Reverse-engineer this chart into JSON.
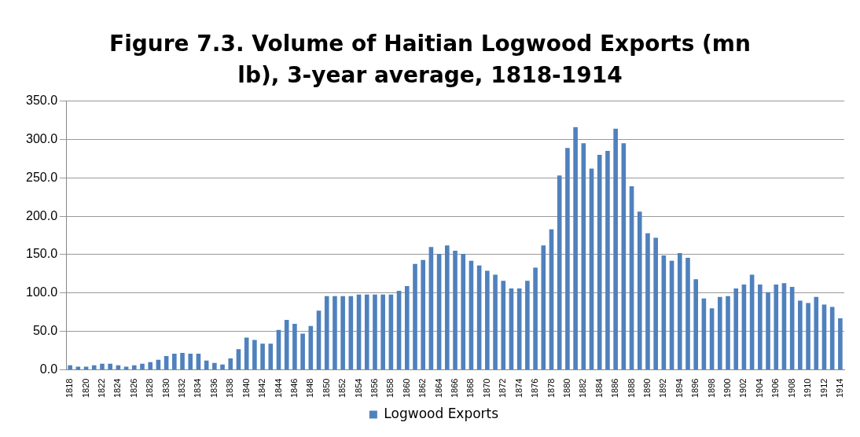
{
  "chart_data": {
    "type": "bar",
    "title": "Figure 7.3. Volume of Haitian Logwood Exports (mn lb), 3-year average, 1818-1914",
    "categories": [
      "1818",
      null,
      "1820",
      null,
      "1822",
      null,
      "1824",
      null,
      "1826",
      null,
      "1828",
      null,
      "1830",
      null,
      "1832",
      null,
      "1834",
      null,
      "1836",
      null,
      "1838",
      null,
      "1840",
      null,
      "1842",
      null,
      "1844",
      null,
      "1846",
      null,
      "1848",
      null,
      "1850",
      null,
      "1852",
      null,
      "1854",
      null,
      "1856",
      null,
      "1858",
      null,
      "1860",
      null,
      "1862",
      null,
      "1864",
      null,
      "1866",
      null,
      "1868",
      null,
      "1870",
      null,
      "1872",
      null,
      "1874",
      null,
      "1876",
      null,
      "1878",
      null,
      "1880",
      null,
      "1882",
      null,
      "1884",
      null,
      "1886",
      null,
      "1888",
      null,
      "1890",
      null,
      "1892",
      null,
      "1894",
      null,
      "1896",
      null,
      "1898",
      null,
      "1900",
      null,
      "1902",
      null,
      "1904",
      null,
      "1906",
      null,
      "1908",
      null,
      "1910",
      null,
      "1912",
      null,
      "1914"
    ],
    "series": [
      {
        "name": "Logwood Exports",
        "color": "#4f81bd",
        "values": [
          6,
          4,
          4,
          6,
          8,
          8,
          6,
          4,
          6,
          8,
          10,
          13,
          18,
          21,
          22,
          21,
          21,
          12,
          9,
          7,
          15,
          27,
          42,
          39,
          34,
          34,
          52,
          65,
          60,
          47,
          57,
          77,
          96,
          96,
          96,
          96,
          98,
          98,
          98,
          98,
          98,
          103,
          109,
          138,
          143,
          160,
          151,
          162,
          155,
          151,
          142,
          136,
          129,
          124,
          116,
          106,
          106,
          116,
          133,
          162,
          183,
          253,
          289,
          316,
          295,
          262,
          280,
          285,
          314,
          295,
          239,
          206,
          178,
          172,
          149,
          142,
          152,
          146,
          118,
          93,
          80,
          95,
          96,
          106,
          111,
          124,
          111,
          101,
          111,
          113,
          108,
          90,
          87,
          95,
          85,
          82,
          67
        ]
      }
    ],
    "ylim": [
      0,
      350
    ],
    "yticks": [
      {
        "value": 0,
        "label": "0.0"
      },
      {
        "value": 50,
        "label": "50.0"
      },
      {
        "value": 100,
        "label": "100.0"
      },
      {
        "value": 150,
        "label": "150.0"
      },
      {
        "value": 200,
        "label": "200.0"
      },
      {
        "value": 250,
        "label": "250.0"
      },
      {
        "value": 300,
        "label": "300.0"
      },
      {
        "value": 350,
        "label": "350.0"
      }
    ],
    "grid": "y",
    "legend": "bottom"
  }
}
